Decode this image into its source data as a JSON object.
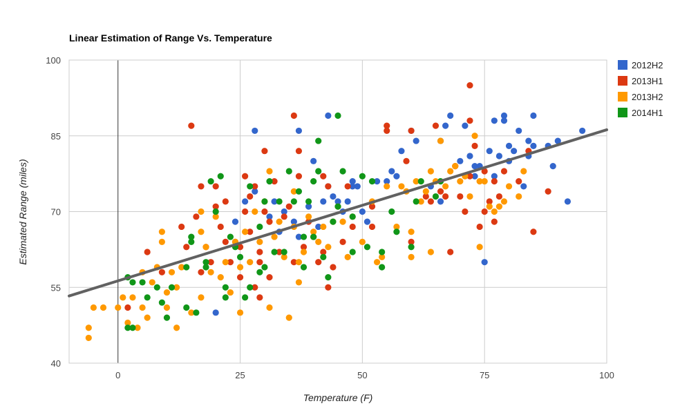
{
  "chart_data": {
    "type": "scatter",
    "title": "Linear Estimation of Range Vs. Temperature",
    "xlabel": "Temperature (F)",
    "ylabel": "Estimated Range (miles)",
    "xlim": [
      -10,
      100
    ],
    "ylim": [
      40,
      100
    ],
    "xticks": [
      0,
      25,
      50,
      75,
      100
    ],
    "yticks": [
      40,
      55,
      70,
      85,
      100
    ],
    "grid": true,
    "legend_position": "right",
    "trendline": {
      "color": "#616161",
      "points": [
        [
          -10,
          53.3
        ],
        [
          100,
          86.2
        ]
      ]
    },
    "series": [
      {
        "name": "2012H2",
        "color": "#3366cc",
        "points": [
          [
            20,
            50
          ],
          [
            24,
            68
          ],
          [
            28,
            74
          ],
          [
            31,
            69
          ],
          [
            32,
            72
          ],
          [
            34,
            70
          ],
          [
            36,
            68
          ],
          [
            37,
            65
          ],
          [
            39,
            71
          ],
          [
            40,
            80
          ],
          [
            41,
            67
          ],
          [
            42,
            72
          ],
          [
            43,
            75
          ],
          [
            44,
            73
          ],
          [
            46,
            70
          ],
          [
            47,
            72
          ],
          [
            48,
            76
          ],
          [
            49,
            75
          ],
          [
            50,
            70
          ],
          [
            51,
            68
          ],
          [
            53,
            76
          ],
          [
            55,
            76
          ],
          [
            56,
            78
          ],
          [
            57,
            77
          ],
          [
            58,
            82
          ],
          [
            60,
            86
          ],
          [
            61,
            84
          ],
          [
            64,
            75
          ],
          [
            66,
            72
          ],
          [
            66,
            84
          ],
          [
            67,
            87
          ],
          [
            68,
            89
          ],
          [
            70,
            80
          ],
          [
            71,
            87
          ],
          [
            72,
            81
          ],
          [
            73,
            79
          ],
          [
            73,
            77
          ],
          [
            74,
            79
          ],
          [
            75,
            60
          ],
          [
            76,
            82
          ],
          [
            77,
            88
          ],
          [
            77,
            77
          ],
          [
            78,
            81
          ],
          [
            79,
            89
          ],
          [
            79,
            88
          ],
          [
            80,
            83
          ],
          [
            80,
            80
          ],
          [
            81,
            82
          ],
          [
            82,
            86
          ],
          [
            83,
            75
          ],
          [
            84,
            81
          ],
          [
            84,
            84
          ],
          [
            85,
            89
          ],
          [
            85,
            83
          ],
          [
            88,
            83
          ],
          [
            89,
            79
          ],
          [
            90,
            84
          ],
          [
            92,
            72
          ],
          [
            95,
            86
          ],
          [
            28,
            86
          ],
          [
            37,
            86
          ],
          [
            43,
            89
          ],
          [
            45,
            72
          ],
          [
            48,
            75
          ],
          [
            33,
            66
          ],
          [
            26,
            72
          ]
        ]
      },
      {
        "name": "2013H1",
        "color": "#dc3912",
        "points": [
          [
            2,
            51
          ],
          [
            6,
            62
          ],
          [
            9,
            58
          ],
          [
            13,
            67
          ],
          [
            14,
            63
          ],
          [
            15,
            87
          ],
          [
            16,
            69
          ],
          [
            17,
            75
          ],
          [
            17,
            58
          ],
          [
            18,
            63
          ],
          [
            19,
            60
          ],
          [
            20,
            71
          ],
          [
            20,
            75
          ],
          [
            21,
            67
          ],
          [
            22,
            64
          ],
          [
            22,
            72
          ],
          [
            23,
            60
          ],
          [
            24,
            64
          ],
          [
            25,
            57
          ],
          [
            25,
            63
          ],
          [
            26,
            77
          ],
          [
            26,
            70
          ],
          [
            27,
            73
          ],
          [
            27,
            66
          ],
          [
            28,
            75
          ],
          [
            28,
            55
          ],
          [
            29,
            62
          ],
          [
            29,
            53
          ],
          [
            29,
            60
          ],
          [
            30,
            82
          ],
          [
            30,
            70
          ],
          [
            31,
            57
          ],
          [
            31,
            68
          ],
          [
            32,
            76
          ],
          [
            33,
            62
          ],
          [
            34,
            69
          ],
          [
            35,
            71
          ],
          [
            36,
            60
          ],
          [
            36,
            89
          ],
          [
            37,
            82
          ],
          [
            37,
            77
          ],
          [
            38,
            63
          ],
          [
            39,
            68
          ],
          [
            40,
            65
          ],
          [
            41,
            60
          ],
          [
            42,
            77
          ],
          [
            42,
            62
          ],
          [
            43,
            55
          ],
          [
            43,
            75
          ],
          [
            44,
            59
          ],
          [
            46,
            64
          ],
          [
            47,
            75
          ],
          [
            48,
            67
          ],
          [
            52,
            71
          ],
          [
            52,
            67
          ],
          [
            55,
            86
          ],
          [
            55,
            87
          ],
          [
            59,
            80
          ],
          [
            60,
            64
          ],
          [
            60,
            86
          ],
          [
            63,
            73
          ],
          [
            64,
            72
          ],
          [
            65,
            87
          ],
          [
            66,
            74
          ],
          [
            67,
            73
          ],
          [
            68,
            62
          ],
          [
            69,
            79
          ],
          [
            70,
            73
          ],
          [
            71,
            70
          ],
          [
            72,
            88
          ],
          [
            72,
            77
          ],
          [
            73,
            83
          ],
          [
            74,
            67
          ],
          [
            75,
            70
          ],
          [
            75,
            78
          ],
          [
            76,
            72
          ],
          [
            77,
            76
          ],
          [
            77,
            68
          ],
          [
            78,
            73
          ],
          [
            79,
            78
          ],
          [
            82,
            76
          ],
          [
            84,
            82
          ],
          [
            85,
            66
          ],
          [
            88,
            74
          ],
          [
            72,
            95
          ]
        ]
      },
      {
        "name": "2013H2",
        "color": "#ff9900",
        "points": [
          [
            -6,
            47
          ],
          [
            -6,
            45
          ],
          [
            -5,
            51
          ],
          [
            -3,
            51
          ],
          [
            0,
            51
          ],
          [
            1,
            53
          ],
          [
            2,
            48
          ],
          [
            3,
            53
          ],
          [
            4,
            47
          ],
          [
            5,
            51
          ],
          [
            5,
            58
          ],
          [
            6,
            49
          ],
          [
            7,
            56
          ],
          [
            8,
            59
          ],
          [
            9,
            64
          ],
          [
            9,
            66
          ],
          [
            10,
            54
          ],
          [
            10,
            51
          ],
          [
            11,
            58
          ],
          [
            12,
            47
          ],
          [
            12,
            55
          ],
          [
            13,
            59
          ],
          [
            15,
            50
          ],
          [
            17,
            70
          ],
          [
            17,
            66
          ],
          [
            17,
            53
          ],
          [
            18,
            63
          ],
          [
            19,
            58
          ],
          [
            20,
            69
          ],
          [
            21,
            57
          ],
          [
            22,
            60
          ],
          [
            23,
            54
          ],
          [
            24,
            64
          ],
          [
            25,
            50
          ],
          [
            25,
            59
          ],
          [
            26,
            66
          ],
          [
            27,
            60
          ],
          [
            28,
            70
          ],
          [
            29,
            64
          ],
          [
            30,
            72
          ],
          [
            31,
            51
          ],
          [
            31,
            78
          ],
          [
            32,
            65
          ],
          [
            33,
            68
          ],
          [
            34,
            61
          ],
          [
            35,
            49
          ],
          [
            36,
            67
          ],
          [
            36,
            74
          ],
          [
            37,
            60
          ],
          [
            37,
            56
          ],
          [
            38,
            62
          ],
          [
            39,
            69
          ],
          [
            40,
            65
          ],
          [
            40,
            66
          ],
          [
            41,
            64
          ],
          [
            42,
            67
          ],
          [
            43,
            63
          ],
          [
            44,
            68
          ],
          [
            45,
            71
          ],
          [
            46,
            68
          ],
          [
            47,
            61
          ],
          [
            48,
            69
          ],
          [
            50,
            64
          ],
          [
            52,
            72
          ],
          [
            53,
            60
          ],
          [
            54,
            61
          ],
          [
            55,
            75
          ],
          [
            57,
            67
          ],
          [
            58,
            75
          ],
          [
            59,
            74
          ],
          [
            60,
            66
          ],
          [
            61,
            76
          ],
          [
            62,
            72
          ],
          [
            63,
            74
          ],
          [
            64,
            78
          ],
          [
            65,
            76
          ],
          [
            66,
            84
          ],
          [
            67,
            75
          ],
          [
            68,
            78
          ],
          [
            69,
            79
          ],
          [
            70,
            76
          ],
          [
            71,
            77
          ],
          [
            72,
            73
          ],
          [
            73,
            85
          ],
          [
            74,
            76
          ],
          [
            74,
            63
          ],
          [
            75,
            76
          ],
          [
            76,
            71
          ],
          [
            77,
            70
          ],
          [
            78,
            71
          ],
          [
            79,
            72
          ],
          [
            80,
            75
          ],
          [
            82,
            73
          ],
          [
            83,
            78
          ],
          [
            60,
            61
          ],
          [
            64,
            62
          ]
        ]
      },
      {
        "name": "2014H1",
        "color": "#109618",
        "points": [
          [
            2,
            57
          ],
          [
            2,
            47
          ],
          [
            3,
            47
          ],
          [
            3,
            56
          ],
          [
            5,
            56
          ],
          [
            6,
            53
          ],
          [
            8,
            55
          ],
          [
            9,
            52
          ],
          [
            10,
            49
          ],
          [
            11,
            55
          ],
          [
            14,
            51
          ],
          [
            14,
            59
          ],
          [
            15,
            65
          ],
          [
            15,
            64
          ],
          [
            16,
            50
          ],
          [
            18,
            59
          ],
          [
            19,
            76
          ],
          [
            20,
            70
          ],
          [
            21,
            77
          ],
          [
            22,
            55
          ],
          [
            22,
            53
          ],
          [
            23,
            65
          ],
          [
            24,
            63
          ],
          [
            25,
            61
          ],
          [
            26,
            53
          ],
          [
            27,
            55
          ],
          [
            27,
            75
          ],
          [
            29,
            67
          ],
          [
            30,
            72
          ],
          [
            30,
            59
          ],
          [
            31,
            76
          ],
          [
            32,
            62
          ],
          [
            33,
            72
          ],
          [
            34,
            62
          ],
          [
            35,
            78
          ],
          [
            36,
            72
          ],
          [
            37,
            74
          ],
          [
            38,
            59
          ],
          [
            38,
            65
          ],
          [
            39,
            72
          ],
          [
            40,
            65
          ],
          [
            40,
            76
          ],
          [
            41,
            78
          ],
          [
            41,
            84
          ],
          [
            42,
            61
          ],
          [
            43,
            57
          ],
          [
            44,
            68
          ],
          [
            45,
            71
          ],
          [
            45,
            89
          ],
          [
            46,
            78
          ],
          [
            48,
            62
          ],
          [
            48,
            69
          ],
          [
            50,
            77
          ],
          [
            51,
            63
          ],
          [
            52,
            76
          ],
          [
            54,
            62
          ],
          [
            54,
            59
          ],
          [
            56,
            70
          ],
          [
            57,
            66
          ],
          [
            60,
            63
          ],
          [
            61,
            72
          ],
          [
            62,
            76
          ],
          [
            65,
            73
          ],
          [
            66,
            76
          ],
          [
            18,
            60
          ],
          [
            29,
            58
          ]
        ]
      }
    ]
  }
}
